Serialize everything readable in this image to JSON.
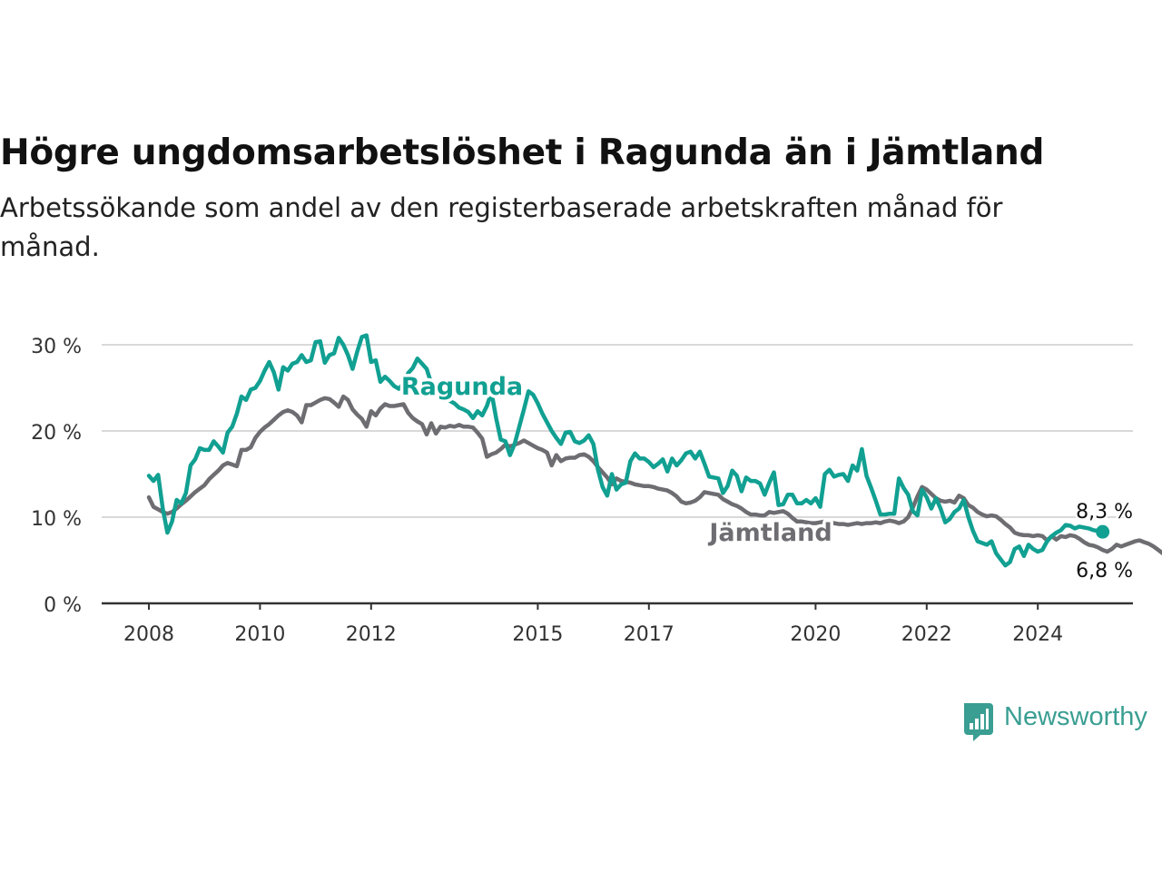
{
  "title": "Högre ungdomsarbetslöshet i Ragunda än i Jämtland",
  "subtitle": "Arbetssökande som andel av den registerbaserade arbetskraften månad för månad.",
  "brand": {
    "name": "Newsworthy",
    "color": "#3a9e92"
  },
  "chart_data": {
    "type": "line",
    "x_start": "2008-01",
    "x_frequency": "monthly",
    "x_tick_labels": [
      "2008",
      "2010",
      "2012",
      "2015",
      "2017",
      "2020",
      "2022",
      "2024"
    ],
    "y_tick_labels": [
      "0 %",
      "10 %",
      "20 %",
      "30 %"
    ],
    "y_ticks": [
      0,
      10,
      20,
      30
    ],
    "ylim": [
      0,
      32
    ],
    "grid": true,
    "series": [
      {
        "name": "Jämtland",
        "color": "#6e6d72",
        "end_label": "6,8 %",
        "values": [
          12.3,
          11.2,
          10.9,
          10.6,
          10.4,
          10.6,
          11.0,
          11.5,
          11.9,
          12.4,
          12.9,
          13.3,
          13.7,
          14.4,
          14.9,
          15.4,
          16.0,
          16.3,
          16.1,
          15.9,
          17.8,
          17.8,
          18.1,
          19.2,
          19.9,
          20.4,
          20.8,
          21.3,
          21.8,
          22.2,
          22.4,
          22.2,
          21.8,
          21.0,
          23.0,
          23.0,
          23.3,
          23.6,
          23.8,
          23.7,
          23.3,
          22.8,
          24.0,
          23.6,
          22.5,
          21.9,
          21.4,
          20.5,
          22.3,
          21.8,
          22.6,
          23.1,
          22.9,
          22.9,
          23.0,
          23.1,
          22.1,
          21.5,
          21.1,
          20.8,
          19.6,
          20.9,
          19.7,
          20.5,
          20.4,
          20.6,
          20.5,
          20.7,
          20.5,
          20.5,
          20.4,
          19.8,
          19.1,
          17.0,
          17.3,
          17.5,
          17.9,
          18.4,
          18.2,
          18.4,
          18.6,
          18.9,
          18.6,
          18.3,
          18.0,
          17.8,
          17.5,
          16.0,
          17.2,
          16.5,
          16.8,
          16.9,
          16.9,
          17.2,
          17.3,
          17.0,
          16.5,
          15.8,
          15.2,
          14.6,
          13.8,
          14.5,
          14.2,
          14.1,
          14.0,
          13.8,
          13.7,
          13.6,
          13.6,
          13.5,
          13.3,
          13.2,
          13.1,
          12.8,
          12.4,
          11.8,
          11.6,
          11.7,
          11.9,
          12.3,
          12.9,
          12.8,
          12.7,
          12.6,
          12.1,
          11.8,
          11.5,
          11.3,
          11.0,
          10.6,
          10.3,
          10.3,
          10.2,
          10.2,
          10.6,
          10.5,
          10.6,
          10.7,
          10.4,
          9.9,
          9.5,
          9.5,
          9.4,
          9.3,
          9.3,
          9.4,
          9.5,
          9.4,
          9.3,
          9.2,
          9.2,
          9.1,
          9.2,
          9.3,
          9.2,
          9.3,
          9.3,
          9.4,
          9.3,
          9.5,
          9.6,
          9.5,
          9.3,
          9.5,
          10.0,
          11.1,
          12.4,
          13.5,
          13.2,
          12.7,
          12.2,
          11.9,
          11.8,
          11.9,
          11.7,
          12.5,
          12.2,
          11.4,
          11.1,
          10.6,
          10.3,
          10.1,
          10.2,
          10.1,
          9.7,
          9.2,
          8.8,
          8.2,
          8.0,
          7.9,
          7.9,
          7.8,
          7.9,
          7.8,
          7.3,
          7.8,
          7.4,
          7.8,
          7.7,
          7.9,
          7.8,
          7.5,
          7.1,
          6.8,
          6.7,
          6.5,
          6.2,
          6.0,
          6.3,
          6.8,
          6.6,
          6.8,
          7.0,
          7.2,
          7.3,
          7.1,
          6.9,
          6.6,
          6.2,
          5.8,
          5.7,
          6.0,
          6.4,
          6.9,
          6.8
        ]
      },
      {
        "name": "Ragunda",
        "color": "#11a092",
        "end_label": "8,3 %",
        "values": [
          14.8,
          14.2,
          14.9,
          11.0,
          8.2,
          9.5,
          12.0,
          11.6,
          12.8,
          16.0,
          16.7,
          18.0,
          17.8,
          17.8,
          18.8,
          18.2,
          17.5,
          19.8,
          20.5,
          22.0,
          24.0,
          23.6,
          24.8,
          25.0,
          25.8,
          27.0,
          28.0,
          26.8,
          24.8,
          27.4,
          27.0,
          27.8,
          28.0,
          28.8,
          28.0,
          28.2,
          30.3,
          30.4,
          27.9,
          28.8,
          29.0,
          30.8,
          30.0,
          28.8,
          27.2,
          29.2,
          30.9,
          31.1,
          28.0,
          28.2,
          25.7,
          26.3,
          25.8,
          25.2,
          24.9,
          25.5,
          26.7,
          27.3,
          28.4,
          27.8,
          27.2,
          25.5,
          24.8,
          25.2,
          24.0,
          23.5,
          23.2,
          22.7,
          22.5,
          22.2,
          21.5,
          22.3,
          21.8,
          22.9,
          24.5,
          21.5,
          19.0,
          18.8,
          17.2,
          18.5,
          20.5,
          22.5,
          24.6,
          24.2,
          23.2,
          22.0,
          21.0,
          20.0,
          19.2,
          18.5,
          19.8,
          19.9,
          18.8,
          18.6,
          18.9,
          19.5,
          18.5,
          15.5,
          13.5,
          12.5,
          15.0,
          13.2,
          13.8,
          14.0,
          16.5,
          17.4,
          16.8,
          16.8,
          16.4,
          15.8,
          16.2,
          16.7,
          15.3,
          16.8,
          16.0,
          16.6,
          17.4,
          17.6,
          16.8,
          17.6,
          16.2,
          14.7,
          14.6,
          14.5,
          12.8,
          13.6,
          15.4,
          14.8,
          13.0,
          14.6,
          14.2,
          14.2,
          13.9,
          12.6,
          14.0,
          15.2,
          11.4,
          11.5,
          12.6,
          12.6,
          11.6,
          11.6,
          12.0,
          11.6,
          12.2,
          11.2,
          15.0,
          15.5,
          14.7,
          14.9,
          15.0,
          14.2,
          16.0,
          15.4,
          17.9,
          14.8,
          13.4,
          11.9,
          10.3,
          10.3,
          10.4,
          10.4,
          14.5,
          13.4,
          12.6,
          10.7,
          10.2,
          13.2,
          12.3,
          11.0,
          12.2,
          11.0,
          9.4,
          9.8,
          10.6,
          11.0,
          12.0,
          10.0,
          8.4,
          7.2,
          7.0,
          6.8,
          7.2,
          5.8,
          5.1,
          4.4,
          4.8,
          6.3,
          6.6,
          5.5,
          6.8,
          6.3,
          6.0,
          6.2,
          7.2,
          7.8,
          8.2,
          8.5,
          9.1,
          9.0,
          8.7,
          8.9,
          8.8,
          8.7,
          8.5,
          8.4,
          8.3
        ]
      }
    ],
    "annotations": [
      "Ragunda",
      "Jämtland"
    ]
  }
}
